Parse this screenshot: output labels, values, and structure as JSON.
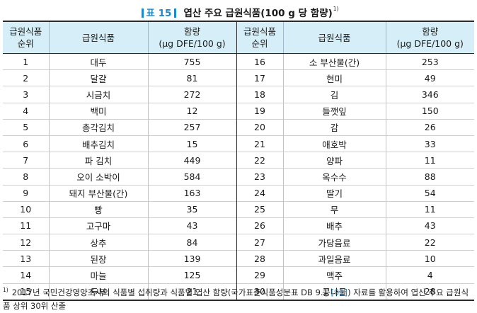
{
  "title": {
    "label": "표 15",
    "text": "엽산 주요 급원식품(100 g 당 함량)",
    "sup": "1)"
  },
  "table": {
    "headers": {
      "rank": [
        "급원식품",
        "순위"
      ],
      "food": "급원식품",
      "content": [
        "함량",
        "(μg DFE/100 g)"
      ]
    },
    "rows": [
      {
        "rank_l": "1",
        "food_l": "대두",
        "val_l": "755",
        "rank_r": "16",
        "food_r": "소 부산물(간)",
        "val_r": "253"
      },
      {
        "rank_l": "2",
        "food_l": "달걀",
        "val_l": "81",
        "rank_r": "17",
        "food_r": "현미",
        "val_r": "49"
      },
      {
        "rank_l": "3",
        "food_l": "시금치",
        "val_l": "272",
        "rank_r": "18",
        "food_r": "김",
        "val_r": "346"
      },
      {
        "rank_l": "4",
        "food_l": "백미",
        "val_l": "12",
        "rank_r": "19",
        "food_r": "들깻잎",
        "val_r": "150"
      },
      {
        "rank_l": "5",
        "food_l": "총각김치",
        "val_l": "257",
        "rank_r": "20",
        "food_r": "감",
        "val_r": "26"
      },
      {
        "rank_l": "6",
        "food_l": "배추김치",
        "val_l": "15",
        "rank_r": "21",
        "food_r": "애호박",
        "val_r": "33"
      },
      {
        "rank_l": "7",
        "food_l": "파 김치",
        "val_l": "449",
        "rank_r": "22",
        "food_r": "양파",
        "val_r": "11"
      },
      {
        "rank_l": "8",
        "food_l": "오이 소박이",
        "val_l": "584",
        "rank_r": "23",
        "food_r": "옥수수",
        "val_r": "88"
      },
      {
        "rank_l": "9",
        "food_l": "돼지 부산물(간)",
        "val_l": "163",
        "rank_r": "24",
        "food_r": "딸기",
        "val_r": "54"
      },
      {
        "rank_l": "10",
        "food_l": "빵",
        "val_l": "35",
        "rank_r": "25",
        "food_r": "무",
        "val_r": "11"
      },
      {
        "rank_l": "11",
        "food_l": "고구마",
        "val_l": "43",
        "rank_r": "26",
        "food_r": "배추",
        "val_r": "43"
      },
      {
        "rank_l": "12",
        "food_l": "상추",
        "val_l": "84",
        "rank_r": "27",
        "food_r": "가당음료",
        "val_r": "22"
      },
      {
        "rank_l": "13",
        "food_l": "된장",
        "val_l": "139",
        "rank_r": "28",
        "food_r": "과일음료",
        "val_r": "10"
      },
      {
        "rank_l": "14",
        "food_l": "마늘",
        "val_l": "125",
        "rank_r": "29",
        "food_r": "맥주",
        "val_r": "4"
      },
      {
        "rank_l": "15",
        "food_l": "두부",
        "val_l": "21",
        "rank_r": "30",
        "food_r": "콩나물",
        "val_r": "28"
      }
    ]
  },
  "footnote": {
    "marker": "1)",
    "before": "2017년 국민건강영양조사의 식품별 섭취량과 식품별 엽산 함량(국가표준식품성분표 DB 9.1 ",
    "ref": "[91]",
    "after": ") 자료를 활용하여 엽산 주요 급원식품 상위 30위 산출"
  },
  "colors": {
    "accent": "#1e88c9",
    "header_bg": "#d6eef8"
  }
}
